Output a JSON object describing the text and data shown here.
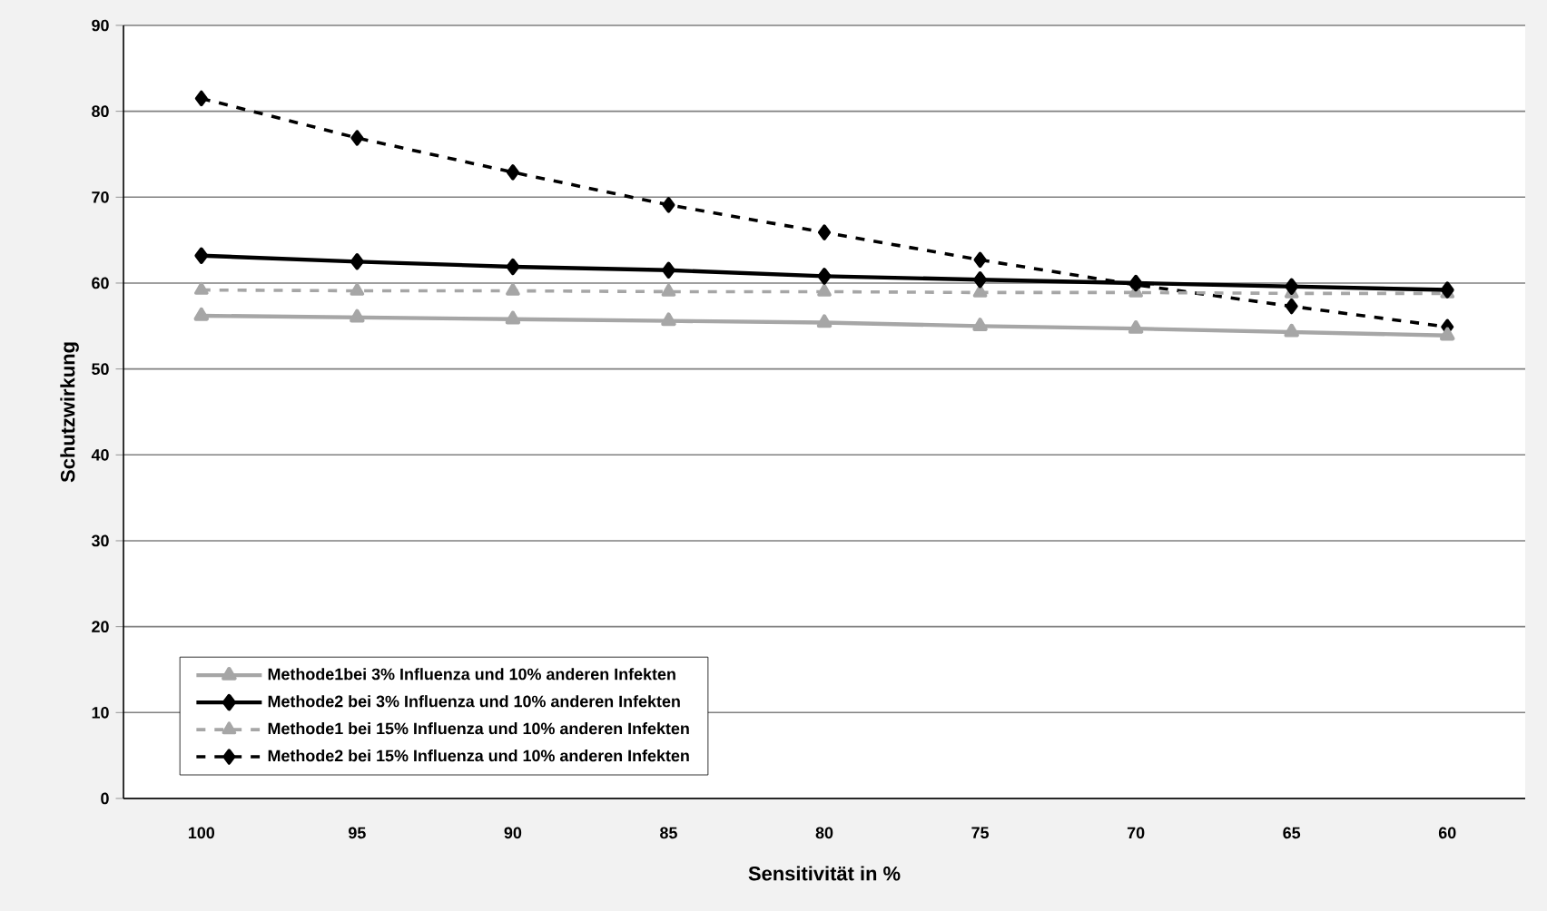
{
  "chart_data": {
    "type": "line",
    "xlabel": "Sensitivität in %",
    "ylabel": "Schutzwirkung",
    "categories": [
      "100",
      "95",
      "90",
      "85",
      "80",
      "75",
      "70",
      "65",
      "60"
    ],
    "ylim": [
      0,
      90
    ],
    "yticks": [
      0,
      10,
      20,
      30,
      40,
      50,
      60,
      70,
      80,
      90
    ],
    "grid": "y",
    "legend": "bottom left",
    "series": [
      {
        "name": "Methode1bei 3% Influenza und 10% anderen Infekten",
        "color": "#a6a6a6",
        "marker": "triangle",
        "line_style": "solid",
        "values": [
          56.2,
          56.0,
          55.8,
          55.6,
          55.4,
          55.0,
          54.7,
          54.3,
          53.9
        ]
      },
      {
        "name": "Methode2 bei 3% Influenza und 10% anderen Infekten",
        "color": "#000000",
        "marker": "diamond",
        "line_style": "solid",
        "values": [
          63.2,
          62.5,
          61.9,
          61.5,
          60.8,
          60.4,
          60.0,
          59.6,
          59.2
        ]
      },
      {
        "name": "Methode1 bei 15% Influenza und 10% anderen Infekten",
        "color": "#a6a6a6",
        "marker": "triangle",
        "line_style": "dashed",
        "values": [
          59.2,
          59.1,
          59.1,
          59.0,
          59.0,
          58.9,
          58.9,
          58.8,
          58.8
        ]
      },
      {
        "name": "Methode2 bei 15% Influenza und 10% anderen Infekten",
        "color": "#000000",
        "marker": "diamond",
        "line_style": "dashed",
        "values": [
          81.5,
          76.9,
          72.9,
          69.1,
          65.9,
          62.7,
          59.8,
          57.3,
          54.9
        ]
      }
    ]
  }
}
